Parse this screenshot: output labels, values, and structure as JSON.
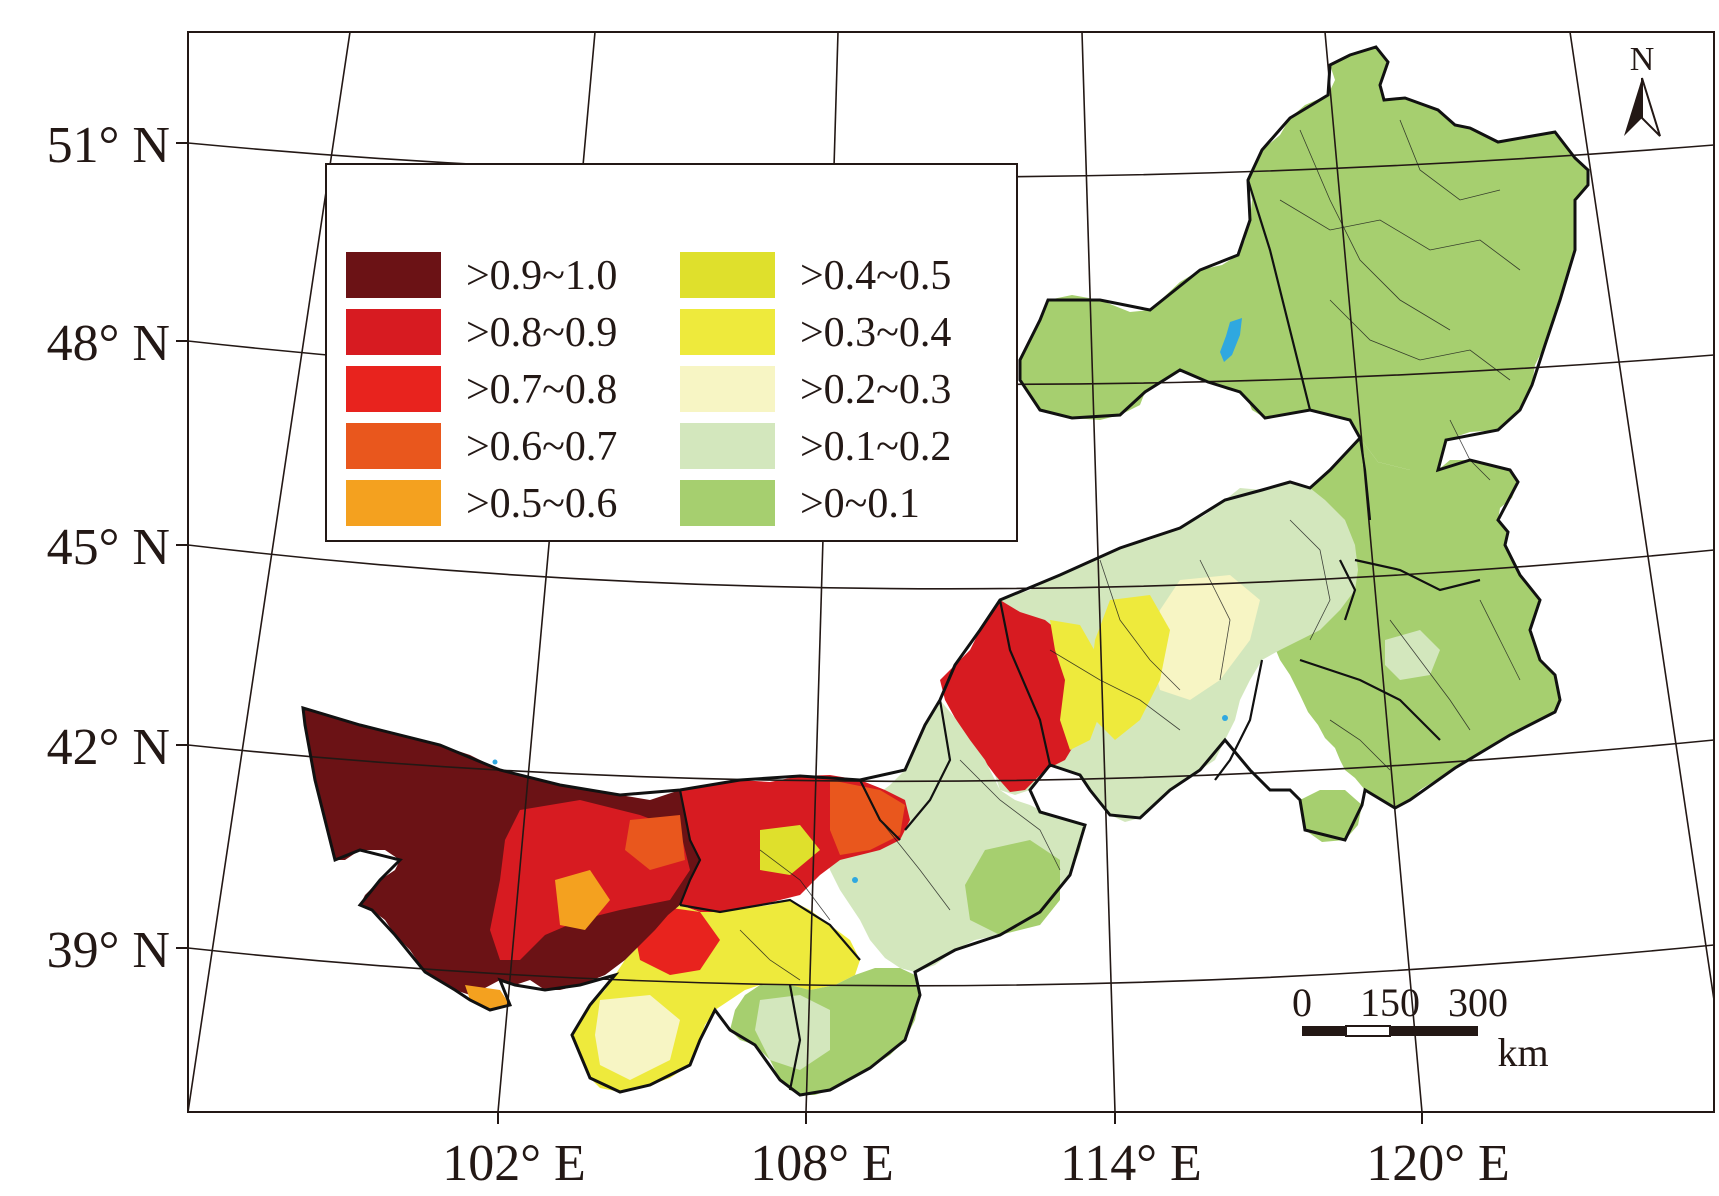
{
  "map": {
    "lat_labels": [
      "51° N",
      "48° N",
      "45° N",
      "42° N",
      "39° N"
    ],
    "lon_labels": [
      "102° E",
      "108° E",
      "114° E",
      "120° E"
    ],
    "north_arrow": {
      "letter": "N",
      "icon": "north-arrow-icon"
    },
    "scale_bar": {
      "ticks": [
        "0",
        "150",
        "300"
      ],
      "unit": "km"
    },
    "legend": {
      "items": [
        {
          "label": ">0.9~1.0",
          "color": "#6b1215"
        },
        {
          "label": ">0.8~0.9",
          "color": "#d71b21"
        },
        {
          "label": ">0.7~0.8",
          "color": "#e8231e"
        },
        {
          "label": ">0.6~0.7",
          "color": "#e9571d"
        },
        {
          "label": ">0.5~0.6",
          "color": "#f4a11f"
        },
        {
          "label": ">0.4~0.5",
          "color": "#dfe02c"
        },
        {
          "label": ">0.3~0.4",
          "color": "#eeea3c"
        },
        {
          "label": ">0.2~0.3",
          "color": "#f7f5c4"
        },
        {
          "label": ">0.1~0.2",
          "color": "#d3e7bd"
        },
        {
          "label": ">0~0.1",
          "color": "#a6cf6f"
        }
      ]
    },
    "water_color": "#2fa8e0"
  }
}
